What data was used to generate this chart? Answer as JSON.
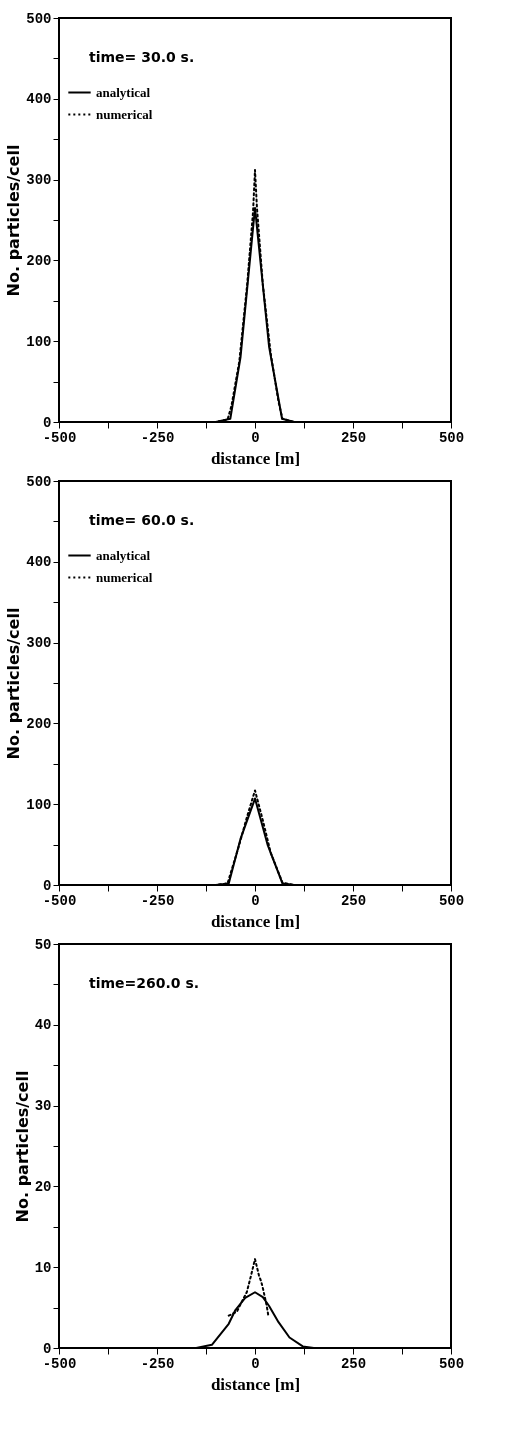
{
  "chart_data": [
    {
      "type": "line",
      "xlabel": "distance [m]",
      "ylabel": "No. particles/cell",
      "annotations": [
        "time= 30.0 s."
      ],
      "xlim": [
        -500,
        500
      ],
      "ylim": [
        0,
        500
      ],
      "xticks": [
        -500,
        {
          "value": -375,
          "label": null
        },
        -250,
        {
          "value": -125,
          "label": null
        },
        0,
        {
          "value": 125,
          "label": null
        },
        250,
        {
          "value": 375,
          "label": null
        },
        500
      ],
      "yticks": [
        0,
        {
          "value": 50,
          "label": null
        },
        100,
        {
          "value": 150,
          "label": null
        },
        200,
        {
          "value": 250,
          "label": null
        },
        300,
        {
          "value": 350,
          "label": null
        },
        400,
        {
          "value": 450,
          "label": null
        },
        500
      ],
      "legend": "top left",
      "series": [
        {
          "name": "analytical",
          "color": "#000000",
          "line_style": "solid",
          "x": [
            -500,
            -100,
            -63,
            -37,
            0,
            36,
            69,
            100,
            500
          ],
          "values": [
            0,
            0,
            4,
            80,
            265,
            93,
            4,
            0,
            0
          ]
        },
        {
          "name": "numerical",
          "color": "#000000",
          "line_style": "dotted",
          "x": [
            -500,
            -100,
            -70,
            -60,
            -40,
            -20,
            -5,
            0,
            5,
            20,
            40,
            60,
            70,
            100,
            500
          ],
          "values": [
            0,
            0,
            3,
            20,
            75,
            170,
            260,
            312,
            265,
            170,
            85,
            25,
            4,
            0,
            0
          ]
        }
      ]
    },
    {
      "type": "line",
      "xlabel": "distance [m]",
      "ylabel": "No. particles/cell",
      "annotations": [
        "time= 60.0 s."
      ],
      "xlim": [
        -500,
        500
      ],
      "ylim": [
        0,
        500
      ],
      "xticks": [
        -500,
        {
          "value": -375,
          "label": null
        },
        -250,
        {
          "value": -125,
          "label": null
        },
        0,
        {
          "value": 125,
          "label": null
        },
        250,
        {
          "value": 375,
          "label": null
        },
        500
      ],
      "yticks": [
        0,
        {
          "value": 50,
          "label": null
        },
        100,
        {
          "value": 150,
          "label": null
        },
        200,
        {
          "value": 250,
          "label": null
        },
        300,
        {
          "value": 350,
          "label": null
        },
        400,
        {
          "value": 450,
          "label": null
        },
        500
      ],
      "legend": "top left",
      "series": [
        {
          "name": "analytical",
          "color": "#000000",
          "line_style": "solid",
          "x": [
            -500,
            -100,
            -67,
            -37,
            0,
            32,
            70,
            100,
            500
          ],
          "values": [
            0,
            0,
            2,
            57,
            107,
            50,
            2,
            0,
            0
          ]
        },
        {
          "name": "numerical",
          "color": "#000000",
          "line_style": "dotted",
          "x": [
            -500,
            -100,
            -70,
            -40,
            -20,
            0,
            20,
            40,
            70,
            100,
            500
          ],
          "values": [
            0,
            0,
            2,
            50,
            85,
            117,
            80,
            40,
            3,
            0,
            0
          ]
        }
      ]
    },
    {
      "type": "line",
      "xlabel": "distance [m]",
      "ylabel": "No. particles/cell",
      "annotations": [
        "time=260.0 s."
      ],
      "xlim": [
        -500,
        500
      ],
      "ylim": [
        0,
        50
      ],
      "xticks": [
        -500,
        {
          "value": -375,
          "label": null
        },
        -250,
        {
          "value": -125,
          "label": null
        },
        0,
        {
          "value": 125,
          "label": null
        },
        250,
        {
          "value": 375,
          "label": null
        },
        500
      ],
      "yticks": [
        0,
        {
          "value": 5,
          "label": null
        },
        10,
        {
          "value": 15,
          "label": null
        },
        20,
        {
          "value": 25,
          "label": null
        },
        30,
        {
          "value": 35,
          "label": null
        },
        40,
        {
          "value": 45,
          "label": null
        },
        50
      ],
      "legend": false,
      "series": [
        {
          "color": "#000000",
          "line_style": "solid",
          "x": [
            -500,
            -150,
            -110,
            -67,
            -50,
            -25,
            0,
            20,
            36,
            60,
            88,
            122,
            150,
            500
          ],
          "values": [
            0,
            0,
            0.4,
            3.0,
            4.7,
            6.2,
            6.9,
            6.3,
            5.2,
            3.2,
            1.3,
            0.2,
            0,
            0
          ]
        },
        {
          "color": "#000000",
          "line_style": "dotted",
          "x": [
            -67,
            -46,
            -33,
            -21,
            -11,
            0,
            10,
            16,
            21,
            30,
            34
          ],
          "values": [
            4.0,
            4.5,
            5.8,
            6.9,
            8.8,
            11.0,
            9.0,
            8.2,
            7.2,
            5.2,
            4.0
          ]
        }
      ]
    }
  ]
}
